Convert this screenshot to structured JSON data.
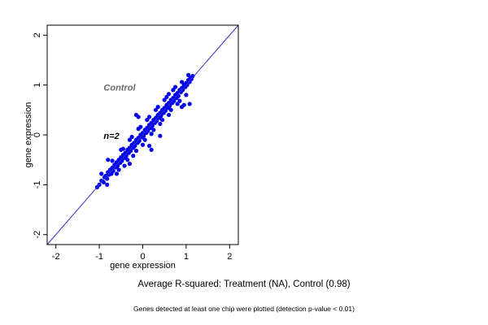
{
  "chart_data": {
    "type": "scatter",
    "xlabel": "gene expression",
    "ylabel": "gene expression",
    "xlim": [
      -2.2,
      2.2
    ],
    "ylim": [
      -2.2,
      2.2
    ],
    "x_ticks": [
      -2,
      -1,
      0,
      1,
      2
    ],
    "y_ticks": [
      -2,
      -1,
      0,
      1,
      2
    ],
    "x_tick_labels": [
      "-2",
      "-1",
      "0",
      "1",
      "2"
    ],
    "y_tick_labels": [
      "-2",
      "-1",
      "0",
      "1",
      "2"
    ],
    "grid": false,
    "identity_line": {
      "from": [
        -2.2,
        -2.2
      ],
      "to": [
        2.2,
        2.2
      ],
      "color": "#3333cc"
    },
    "point_color": "#0000ee",
    "annotations": [
      {
        "text": "Control",
        "x": -0.9,
        "y": 0.95,
        "color": "#666666"
      },
      {
        "text": "n=2",
        "x": -0.9,
        "y": -0.02,
        "color": "#000000"
      }
    ],
    "series": [
      {
        "points": [
          [
            -1.05,
            -1.05
          ],
          [
            -1.0,
            -1.0
          ],
          [
            -0.95,
            -0.92
          ],
          [
            -0.9,
            -0.95
          ],
          [
            -0.88,
            -0.85
          ],
          [
            -0.85,
            -0.82
          ],
          [
            -0.82,
            -0.88
          ],
          [
            -0.8,
            -0.75
          ],
          [
            -0.78,
            -0.8
          ],
          [
            -0.75,
            -0.7
          ],
          [
            -0.72,
            -0.78
          ],
          [
            -0.7,
            -0.66
          ],
          [
            -0.68,
            -0.72
          ],
          [
            -0.65,
            -0.6
          ],
          [
            -0.62,
            -0.65
          ],
          [
            -0.6,
            -0.55
          ],
          [
            -0.58,
            -0.62
          ],
          [
            -0.55,
            -0.5
          ],
          [
            -0.52,
            -0.56
          ],
          [
            -0.5,
            -0.45
          ],
          [
            -0.48,
            -0.52
          ],
          [
            -0.45,
            -0.4
          ],
          [
            -0.42,
            -0.46
          ],
          [
            -0.4,
            -0.36
          ],
          [
            -0.38,
            -0.42
          ],
          [
            -0.35,
            -0.3
          ],
          [
            -0.32,
            -0.36
          ],
          [
            -0.3,
            -0.26
          ],
          [
            -0.28,
            -0.32
          ],
          [
            -0.25,
            -0.2
          ],
          [
            -0.22,
            -0.26
          ],
          [
            -0.2,
            -0.16
          ],
          [
            -0.18,
            -0.22
          ],
          [
            -0.15,
            -0.1
          ],
          [
            -0.12,
            -0.16
          ],
          [
            -0.1,
            -0.06
          ],
          [
            -0.08,
            -0.12
          ],
          [
            -0.05,
            0.0
          ],
          [
            -0.02,
            -0.05
          ],
          [
            0.0,
            0.04
          ],
          [
            0.02,
            -0.02
          ],
          [
            0.05,
            0.1
          ],
          [
            0.08,
            0.04
          ],
          [
            0.1,
            0.14
          ],
          [
            0.12,
            0.08
          ],
          [
            0.15,
            0.2
          ],
          [
            0.18,
            0.14
          ],
          [
            0.2,
            0.24
          ],
          [
            0.22,
            0.18
          ],
          [
            0.25,
            0.3
          ],
          [
            0.28,
            0.24
          ],
          [
            0.3,
            0.34
          ],
          [
            0.32,
            0.28
          ],
          [
            0.35,
            0.4
          ],
          [
            0.38,
            0.34
          ],
          [
            0.4,
            0.44
          ],
          [
            0.42,
            0.38
          ],
          [
            0.45,
            0.5
          ],
          [
            0.48,
            0.44
          ],
          [
            0.5,
            0.54
          ],
          [
            0.52,
            0.48
          ],
          [
            0.55,
            0.6
          ],
          [
            0.58,
            0.54
          ],
          [
            0.6,
            0.64
          ],
          [
            0.62,
            0.58
          ],
          [
            0.65,
            0.7
          ],
          [
            0.68,
            0.64
          ],
          [
            0.7,
            0.74
          ],
          [
            0.72,
            0.68
          ],
          [
            0.75,
            0.8
          ],
          [
            0.78,
            0.74
          ],
          [
            0.8,
            0.84
          ],
          [
            0.82,
            0.78
          ],
          [
            0.85,
            0.9
          ],
          [
            0.88,
            0.86
          ],
          [
            0.9,
            0.94
          ],
          [
            0.92,
            0.9
          ],
          [
            0.95,
            1.0
          ],
          [
            0.98,
            0.96
          ],
          [
            1.0,
            1.04
          ],
          [
            1.02,
            1.0
          ],
          [
            1.05,
            1.1
          ],
          [
            1.08,
            1.06
          ],
          [
            1.1,
            1.14
          ],
          [
            1.12,
            1.12
          ],
          [
            1.15,
            1.18
          ],
          [
            1.05,
            1.2
          ],
          [
            -0.95,
            -0.78
          ],
          [
            -0.82,
            -1.0
          ],
          [
            -0.7,
            -0.52
          ],
          [
            -0.6,
            -0.78
          ],
          [
            -0.5,
            -0.3
          ],
          [
            -0.42,
            -0.62
          ],
          [
            -0.3,
            -0.1
          ],
          [
            -0.22,
            -0.42
          ],
          [
            -0.1,
            0.12
          ],
          [
            0.0,
            -0.2
          ],
          [
            0.1,
            0.3
          ],
          [
            0.2,
            0.02
          ],
          [
            0.3,
            0.5
          ],
          [
            0.4,
            0.22
          ],
          [
            0.5,
            0.7
          ],
          [
            0.6,
            0.4
          ],
          [
            0.7,
            0.9
          ],
          [
            0.8,
            0.62
          ],
          [
            0.9,
            1.06
          ],
          [
            1.0,
            0.8
          ],
          [
            -0.55,
            -0.7
          ],
          [
            -0.45,
            -0.28
          ],
          [
            -0.35,
            -0.5
          ],
          [
            -0.25,
            -0.04
          ],
          [
            -0.15,
            -0.32
          ],
          [
            -0.05,
            0.16
          ],
          [
            0.05,
            -0.1
          ],
          [
            0.15,
            0.36
          ],
          [
            0.25,
            0.1
          ],
          [
            0.35,
            0.56
          ],
          [
            0.45,
            0.3
          ],
          [
            0.55,
            0.76
          ],
          [
            0.65,
            0.5
          ],
          [
            0.75,
            0.96
          ],
          [
            0.85,
            0.68
          ],
          [
            -0.1,
            0.36
          ],
          [
            -0.15,
            0.4
          ],
          [
            0.15,
            -0.22
          ],
          [
            0.2,
            -0.3
          ],
          [
            0.4,
            -0.02
          ],
          [
            0.6,
            0.82
          ],
          [
            -0.3,
            -0.58
          ],
          [
            0.9,
            0.56
          ],
          [
            0.95,
            0.6
          ],
          [
            -0.8,
            -0.5
          ],
          [
            1.08,
            0.62
          ]
        ]
      }
    ]
  },
  "subtitle": "Average R-squared: Treatment (NA), Control (0.98)",
  "footnote": "Genes detected at least one chip were plotted (detection p-value < 0.01)"
}
